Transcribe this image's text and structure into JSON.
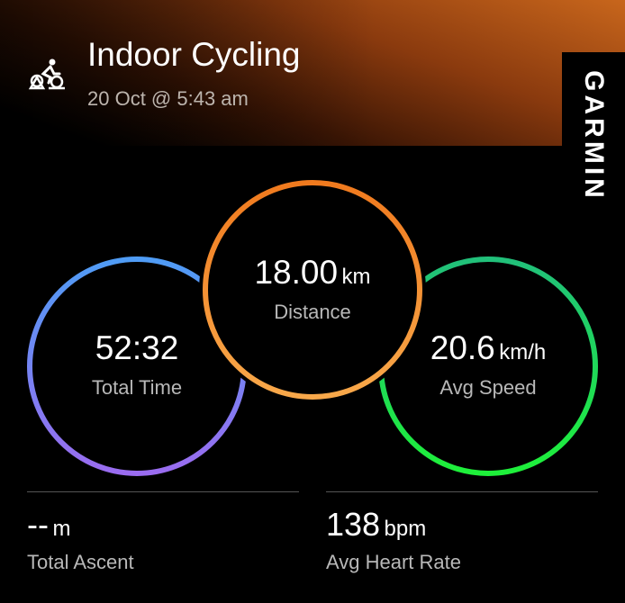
{
  "header": {
    "title": "Indoor Cycling",
    "subtitle": "20 Oct @ 5:43 am",
    "icon": "indoor-cycling-icon",
    "brand": "GARMIN"
  },
  "rings": [
    {
      "value": "52:32",
      "unit": "",
      "label": "Total Time",
      "colors": [
        "#4f9cf5",
        "#9a6cf0"
      ]
    },
    {
      "value": "18.00",
      "unit": "km",
      "label": "Distance",
      "colors": [
        "#f07a1e",
        "#f8a84a"
      ]
    },
    {
      "value": "20.6",
      "unit": "km/h",
      "label": "Avg Speed",
      "colors": [
        "#21c07a",
        "#1ef03a"
      ]
    }
  ],
  "stats": [
    {
      "value": "--",
      "unit": "m",
      "label": "Total Ascent"
    },
    {
      "value": "138",
      "unit": "bpm",
      "label": "Avg Heart Rate"
    }
  ]
}
